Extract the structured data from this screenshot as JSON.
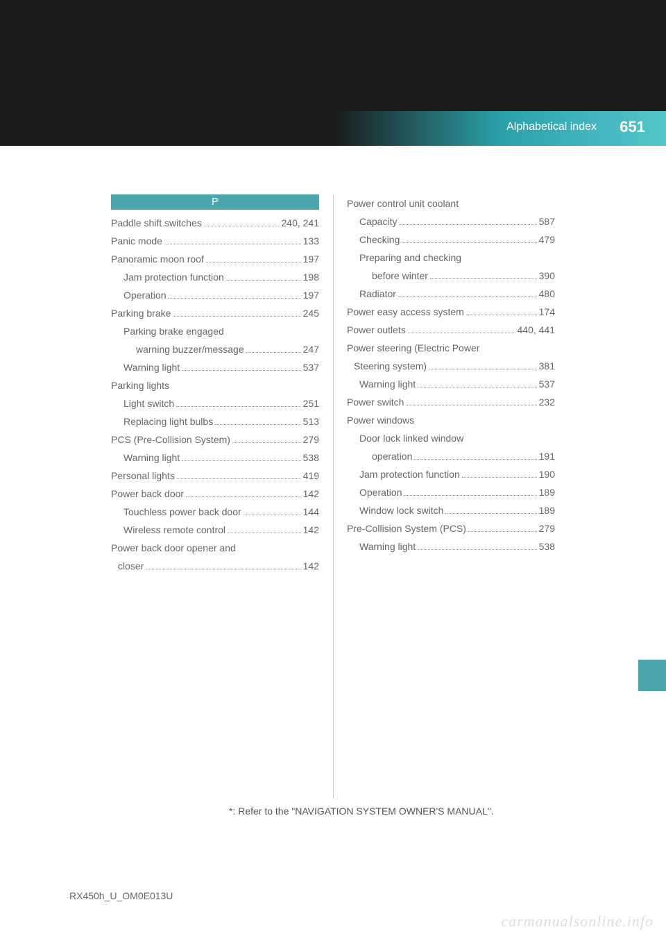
{
  "header": {
    "section_title": "Alphabetical index",
    "page_number": "651"
  },
  "section_letter": "P",
  "left_column": [
    {
      "label": "Paddle shift switches",
      "page": "240, 241",
      "indent": 0
    },
    {
      "label": "Panic mode",
      "page": "133",
      "indent": 0
    },
    {
      "label": "Panoramic moon roof",
      "page": "197",
      "indent": 0
    },
    {
      "label": "Jam protection function",
      "page": "198",
      "indent": 1
    },
    {
      "label": "Operation",
      "page": "197",
      "indent": 1
    },
    {
      "label": "Parking brake",
      "page": "245",
      "indent": 0
    },
    {
      "label": "Parking brake engaged",
      "page": "",
      "indent": 1
    },
    {
      "label": "warning buzzer/message",
      "page": "247",
      "indent": 2
    },
    {
      "label": "Warning light",
      "page": "537",
      "indent": 1
    },
    {
      "label": "Parking lights",
      "page": "",
      "indent": 0
    },
    {
      "label": "Light switch",
      "page": "251",
      "indent": 1
    },
    {
      "label": "Replacing light bulbs",
      "page": "513",
      "indent": 1
    },
    {
      "label": "PCS (Pre-Collision System)",
      "page": "279",
      "indent": 0
    },
    {
      "label": "Warning light",
      "page": "538",
      "indent": 1
    },
    {
      "label": "Personal lights",
      "page": "419",
      "indent": 0
    },
    {
      "label": "Power back door",
      "page": "142",
      "indent": 0
    },
    {
      "label": "Touchless power back door",
      "page": "144",
      "indent": 1
    },
    {
      "label": "Wireless remote control",
      "page": "142",
      "indent": 1
    },
    {
      "label": "Power back door opener and",
      "page": "",
      "indent": 0
    },
    {
      "label": "closer",
      "page": "142",
      "indent": 1,
      "indent_style": 0.5
    }
  ],
  "right_column": [
    {
      "label": "Power control unit coolant",
      "page": "",
      "indent": 0
    },
    {
      "label": "Capacity",
      "page": "587",
      "indent": 1
    },
    {
      "label": "Checking",
      "page": "479",
      "indent": 1
    },
    {
      "label": "Preparing and checking",
      "page": "",
      "indent": 1
    },
    {
      "label": "before winter",
      "page": "390",
      "indent": 2
    },
    {
      "label": "Radiator",
      "page": "480",
      "indent": 1
    },
    {
      "label": "Power easy access system",
      "page": "174",
      "indent": 0
    },
    {
      "label": "Power outlets",
      "page": "440, 441",
      "indent": 0
    },
    {
      "label": "Power steering (Electric Power",
      "page": "",
      "indent": 0
    },
    {
      "label": "Steering system)",
      "page": "381",
      "indent": 0,
      "indent_style": 0.5
    },
    {
      "label": "Warning light",
      "page": "537",
      "indent": 1
    },
    {
      "label": "Power switch",
      "page": "232",
      "indent": 0
    },
    {
      "label": "Power windows",
      "page": "",
      "indent": 0
    },
    {
      "label": "Door lock linked window",
      "page": "",
      "indent": 1
    },
    {
      "label": "operation",
      "page": "191",
      "indent": 2
    },
    {
      "label": "Jam protection function",
      "page": "190",
      "indent": 1
    },
    {
      "label": "Operation",
      "page": "189",
      "indent": 1
    },
    {
      "label": "Window lock switch",
      "page": "189",
      "indent": 1
    },
    {
      "label": "Pre-Collision System (PCS)",
      "page": "279",
      "indent": 0
    },
    {
      "label": "Warning light",
      "page": "538",
      "indent": 1
    }
  ],
  "footnote": "*: Refer to the \"NAVIGATION SYSTEM OWNER'S MANUAL\".",
  "footer_code": "RX450h_U_OM0E013U",
  "watermark": "carmanualsonline.info",
  "colors": {
    "dark_bg": "#1a1a1a",
    "accent": "#4aa5ad",
    "text": "#666666",
    "dots": "#999999"
  }
}
